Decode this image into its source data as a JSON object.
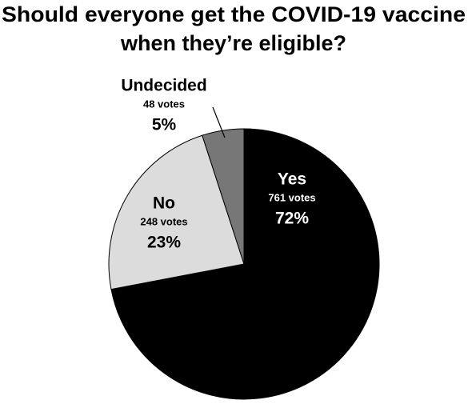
{
  "chart_data": {
    "type": "pie",
    "title": [
      "Should everyone get the COVID-19 vaccine",
      "when they’re eligible?"
    ],
    "categories": [
      "Yes",
      "No",
      "Undecided"
    ],
    "values": [
      72,
      23,
      5
    ],
    "value_labels": [
      "72%",
      "23%",
      "5%"
    ],
    "vote_labels": [
      "761 votes",
      "248 votes",
      "48 votes"
    ],
    "colors": [
      "#000000",
      "#dcdcdc",
      "#777777"
    ],
    "label_colors": [
      "#ffffff",
      "#000000",
      "#000000"
    ]
  }
}
